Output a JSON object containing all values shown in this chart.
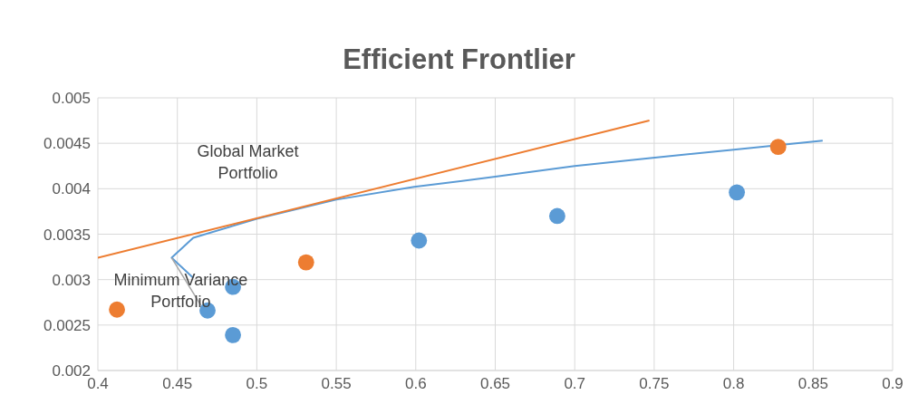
{
  "chart_data": {
    "type": "scatter",
    "title": "Efficient Frontlier",
    "series": [
      {
        "marker": "circle",
        "color": "#5b9bd5",
        "x": [
          0.485,
          0.469,
          0.485,
          0.602,
          0.689,
          0.802
        ],
        "values": [
          0.00292,
          0.00266,
          0.00239,
          0.00343,
          0.0037,
          0.00396
        ]
      },
      {
        "marker": "circle",
        "color": "#ed7d31",
        "x": [
          0.412,
          0.531,
          0.828
        ],
        "values": [
          0.00267,
          0.00319,
          0.00446
        ]
      },
      {
        "type": "line",
        "marker": "none",
        "color": "#5b9bd5",
        "x": [
          0.46,
          0.4464,
          0.46,
          0.5,
          0.55,
          0.599,
          0.649,
          0.7,
          0.749,
          0.8,
          0.856
        ],
        "values": [
          0.00302,
          0.00324,
          0.00346,
          0.00367,
          0.00388,
          0.00402,
          0.00413,
          0.00425,
          0.00434,
          0.00443,
          0.00453
        ]
      },
      {
        "type": "line",
        "marker": "none",
        "color": "#ed7d31",
        "x": [
          0.4,
          0.747
        ],
        "values": [
          0.00324,
          0.00475
        ]
      }
    ],
    "annotations": [
      {
        "text": "Global Market Portfolio",
        "x": 0.5,
        "y": 0.00365
      },
      {
        "text": "Minimum Variance Portfolio",
        "x": 0.4464,
        "y": 0.00324
      }
    ],
    "xlim": [
      0.4,
      0.9
    ],
    "xticks": [
      0.4,
      0.45,
      0.5,
      0.55,
      0.6,
      0.65,
      0.7,
      0.75,
      0.8,
      0.85,
      0.9
    ],
    "ylim": [
      0.002,
      0.005
    ],
    "yticks": [
      0.002,
      0.0025,
      0.003,
      0.0035,
      0.004,
      0.0045,
      0.005
    ],
    "grid": true,
    "legend": false,
    "line_style": "solid"
  }
}
